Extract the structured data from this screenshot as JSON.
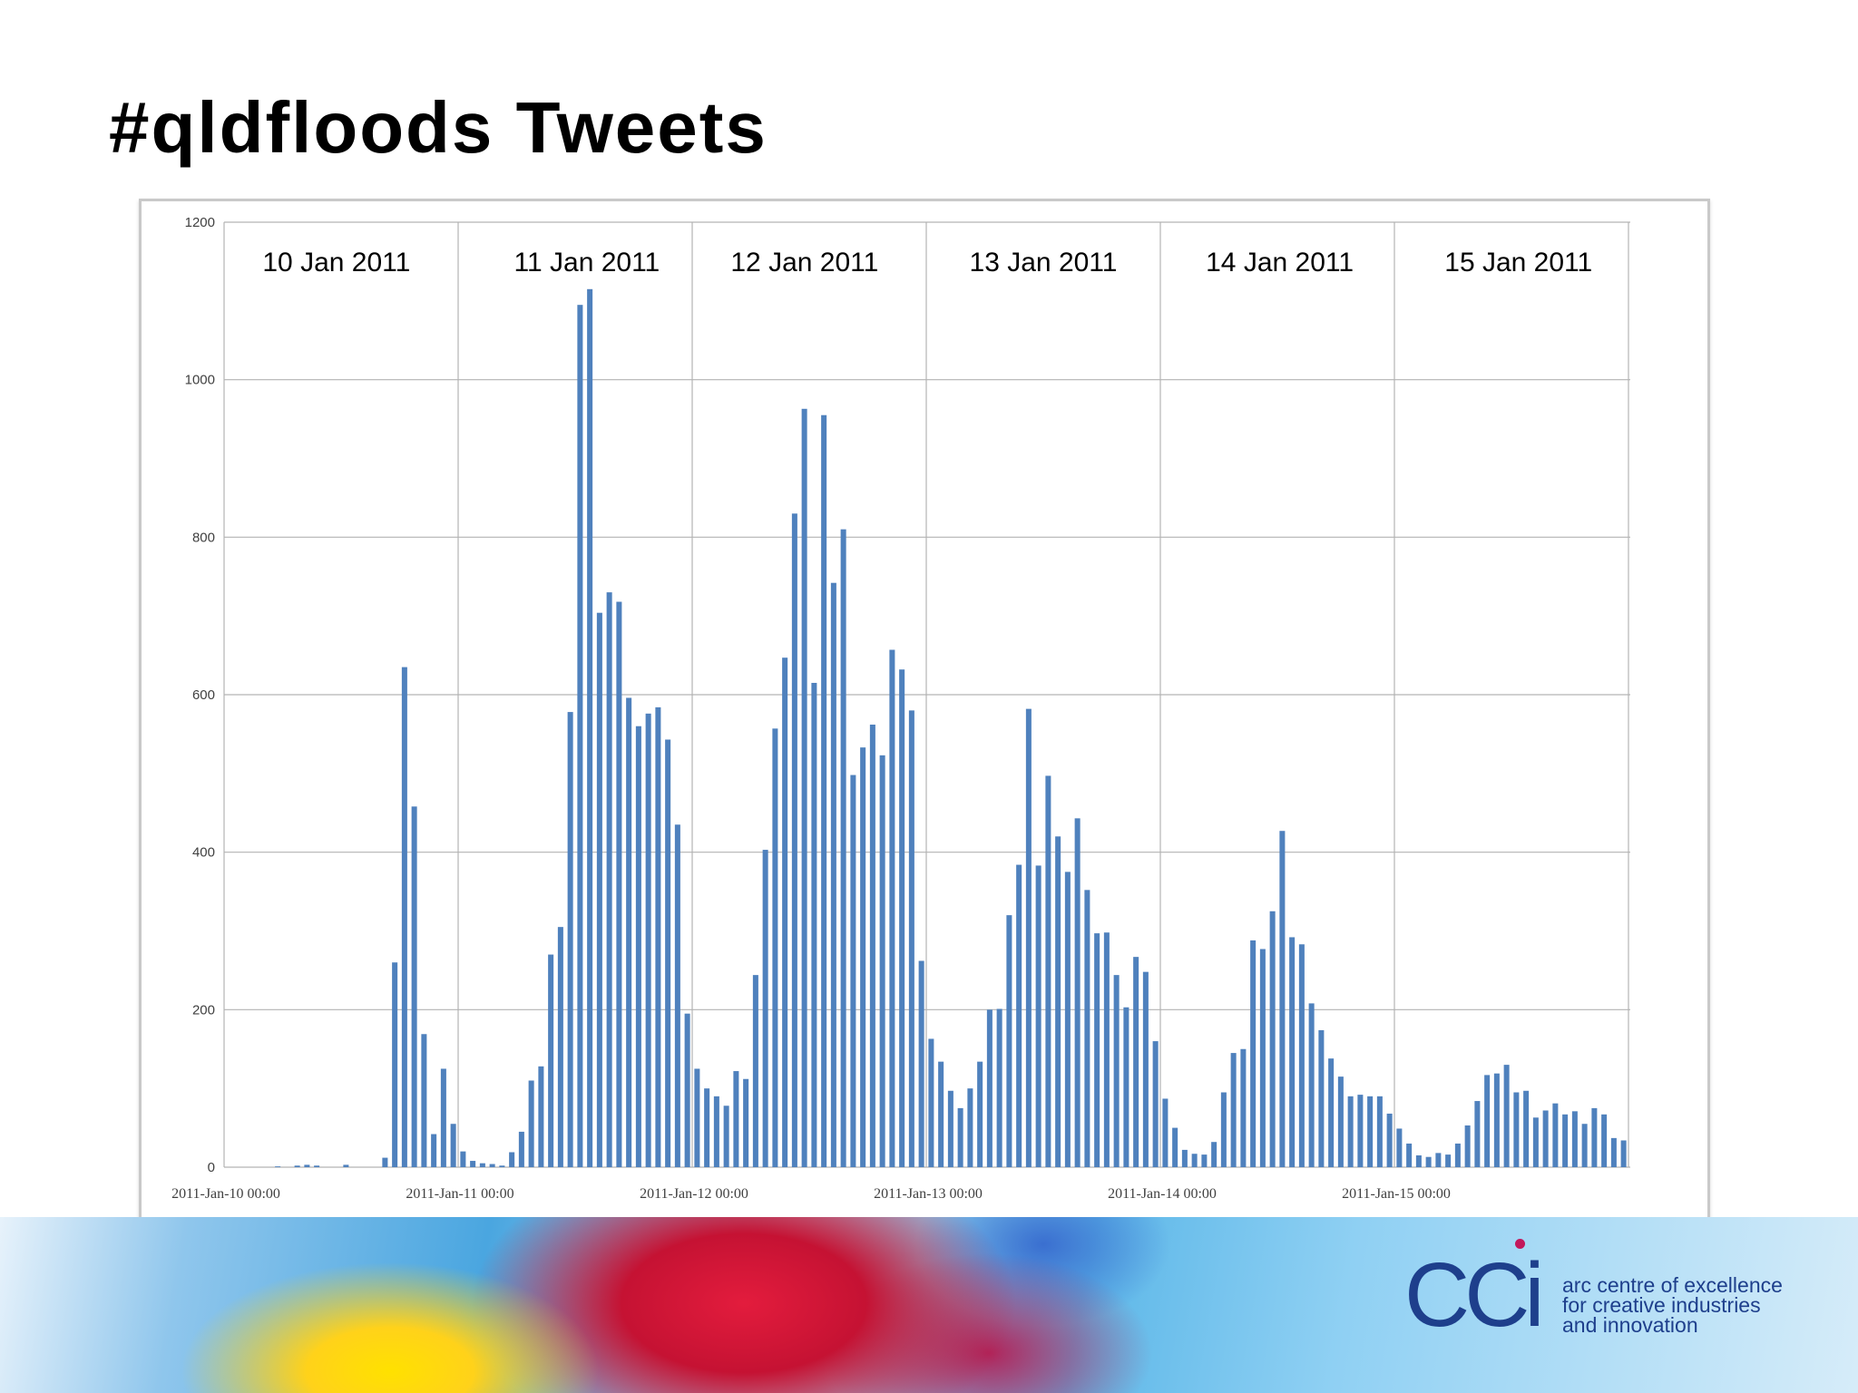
{
  "slide": {
    "title": "#qldfloods Tweets"
  },
  "logo": {
    "mark": "CCi",
    "lines": [
      "arc centre of excellence",
      "for creative industries",
      "and innovation"
    ]
  },
  "colors": {
    "bar": "#4f81bd",
    "grid": "#b3b3b3",
    "logo": "#1e3f8c"
  },
  "chart_data": {
    "type": "bar",
    "title": "",
    "xlabel": "",
    "ylabel": "",
    "ylim": [
      0,
      1200
    ],
    "yticks": [
      0,
      200,
      400,
      600,
      800,
      1000,
      1200
    ],
    "grid": true,
    "legend": "none",
    "x_tick_labels": [
      "2011-Jan-10 00:00",
      "2011-Jan-11 00:00",
      "2011-Jan-12 00:00",
      "2011-Jan-13 00:00",
      "2011-Jan-14 00:00",
      "2011-Jan-15 00:00"
    ],
    "day_labels": [
      "10 Jan 2011",
      "11 Jan 2011",
      "12 Jan 2011",
      "13 Jan 2011",
      "14 Jan 2011",
      "15 Jan 2011"
    ],
    "bin": "hourly",
    "start": "2011-Jan-10 00:00",
    "values": [
      0,
      0,
      0,
      0,
      0,
      1,
      0,
      2,
      3,
      2,
      0,
      0,
      3,
      0,
      0,
      0,
      12,
      260,
      635,
      458,
      169,
      42,
      125,
      55,
      20,
      8,
      5,
      4,
      2,
      19,
      45,
      110,
      128,
      270,
      305,
      578,
      1095,
      1115,
      704,
      730,
      718,
      596,
      560,
      576,
      584,
      543,
      435,
      195,
      125,
      100,
      90,
      78,
      122,
      112,
      244,
      403,
      557,
      647,
      830,
      963,
      615,
      955,
      742,
      810,
      498,
      533,
      562,
      523,
      657,
      632,
      580,
      262,
      163,
      134,
      97,
      75,
      100,
      134,
      200,
      201,
      320,
      384,
      582,
      383,
      497,
      420,
      375,
      443,
      352,
      297,
      298,
      244,
      203,
      267,
      248,
      160,
      87,
      50,
      22,
      17,
      16,
      32,
      95,
      145,
      150,
      288,
      277,
      325,
      427,
      292,
      283,
      208,
      174,
      138,
      115,
      90,
      92,
      90,
      90,
      68,
      49,
      30,
      15,
      13,
      18,
      16,
      30,
      53,
      84,
      117,
      119,
      130,
      95,
      97,
      63,
      72,
      81,
      67,
      71,
      55,
      75,
      67,
      37,
      34
    ]
  }
}
